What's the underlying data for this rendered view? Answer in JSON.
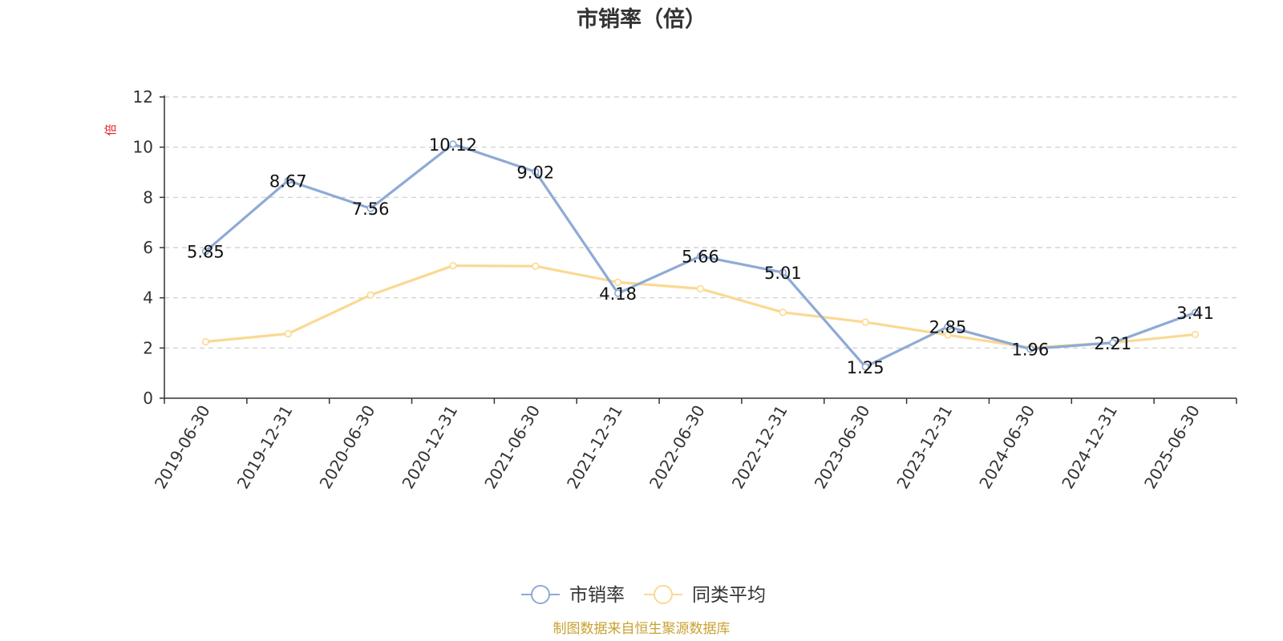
{
  "chart_data": {
    "type": "line",
    "title": "市销率（倍）",
    "ylabel": "倍",
    "xlabel": "",
    "categories": [
      "2019-06-30",
      "2019-12-31",
      "2020-06-30",
      "2020-12-31",
      "2021-06-30",
      "2021-12-31",
      "2022-06-30",
      "2022-12-31",
      "2023-06-30",
      "2023-12-31",
      "2024-06-30",
      "2024-12-31",
      "2025-06-30"
    ],
    "series": [
      {
        "name": "市销率",
        "color": "#8eaad6",
        "values": [
          5.85,
          8.67,
          7.56,
          10.12,
          9.02,
          4.18,
          5.66,
          5.01,
          1.25,
          2.85,
          1.96,
          2.21,
          3.41
        ],
        "labels": [
          "5.85",
          "8.67",
          "7.56",
          "10.12",
          "9.02",
          "4.18",
          "5.66",
          "5.01",
          "1.25",
          "2.85",
          "1.96",
          "2.21",
          "3.41"
        ]
      },
      {
        "name": "同类平均",
        "color": "#fbd993",
        "values": [
          2.25,
          2.57,
          4.11,
          5.28,
          5.26,
          4.62,
          4.36,
          3.42,
          3.03,
          2.52,
          2.01,
          2.21,
          2.54
        ]
      }
    ],
    "ylim": [
      0,
      12
    ],
    "yticks": [
      "0",
      "2",
      "4",
      "6",
      "8",
      "10",
      "12"
    ],
    "grid": true,
    "legend_position": "bottom-center"
  },
  "unit_color": "#e02020",
  "footer": {
    "text": "制图数据来自恒生聚源数据库",
    "color": "#c9a232"
  }
}
